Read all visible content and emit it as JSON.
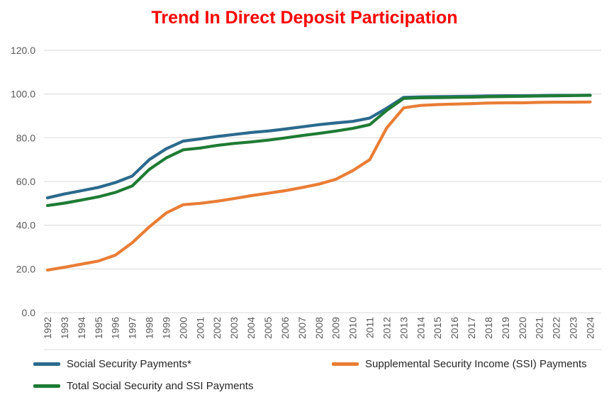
{
  "chart_data": {
    "type": "line",
    "title": "Trend In Direct Deposit Participation",
    "title_color": "#FF0000",
    "xlabel": "",
    "ylabel": "",
    "ylim": [
      0,
      120
    ],
    "y_ticks": [
      "120.0",
      "100.0",
      "80.0",
      "60.0",
      "40.0",
      "20.0",
      "0.0"
    ],
    "grid": "horizontal",
    "grid_color": "#D9D9D9",
    "axis_text_color": "#595959",
    "legend_position": "bottom",
    "categories": [
      "1992",
      "1993",
      "1994",
      "1995",
      "1996",
      "1997",
      "1998",
      "1999",
      "2000",
      "2001",
      "2002",
      "2003",
      "2004",
      "2005",
      "2006",
      "2007",
      "2008",
      "2009",
      "2010",
      "2011",
      "2012",
      "2013",
      "2014",
      "2015",
      "2016",
      "2017",
      "2018",
      "2019",
      "2020",
      "2021",
      "2022",
      "2023",
      "2024"
    ],
    "series": [
      {
        "name": "Social Security Payments*",
        "color": "#2B6A8D",
        "values": [
          52.5,
          54.3,
          55.8,
          57.3,
          59.5,
          62.5,
          70.0,
          75.0,
          78.5,
          79.5,
          80.6,
          81.5,
          82.4,
          83.1,
          84.0,
          85.0,
          86.0,
          86.8,
          87.5,
          89.0,
          93.5,
          98.5,
          98.7,
          98.8,
          98.9,
          99.0,
          99.1,
          99.2,
          99.2,
          99.3,
          99.4,
          99.4,
          99.5
        ]
      },
      {
        "name": "Supplemental Security Income (SSI) Payments",
        "color": "#E97D35",
        "values": [
          19.5,
          20.8,
          22.2,
          23.6,
          26.3,
          32.0,
          39.2,
          45.6,
          49.4,
          50.0,
          51.0,
          52.2,
          53.5,
          54.6,
          55.8,
          57.2,
          58.8,
          61.0,
          65.0,
          70.0,
          84.5,
          93.7,
          94.8,
          95.2,
          95.4,
          95.6,
          95.9,
          96.0,
          96.0,
          96.2,
          96.3,
          96.3,
          96.4
        ]
      },
      {
        "name": "Total Social Security and SSI Payments",
        "color": "#1E7B34",
        "values": [
          49.0,
          50.1,
          51.5,
          53.0,
          55.0,
          58.0,
          65.5,
          70.8,
          74.5,
          75.3,
          76.5,
          77.4,
          78.1,
          78.9,
          79.9,
          81.0,
          82.0,
          83.1,
          84.3,
          86.0,
          92.5,
          98.0,
          98.3,
          98.4,
          98.5,
          98.6,
          98.8,
          98.9,
          99.0,
          99.1,
          99.2,
          99.3,
          99.4
        ]
      }
    ]
  }
}
